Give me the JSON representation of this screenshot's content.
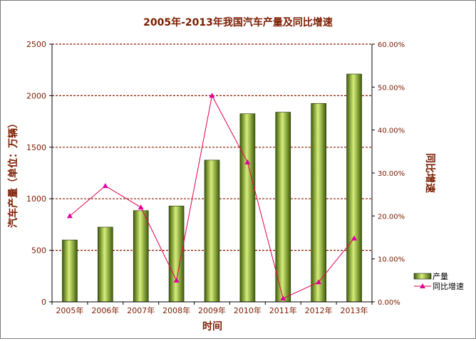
{
  "chart_data": {
    "type": "bar",
    "title": "2005年-2013年我国汽车产量及同比增速",
    "xlabel": "时间",
    "ylabel": "汽车产量（单位：万辆）",
    "y2label": "同比增速",
    "categories": [
      "2005年",
      "2006年",
      "2007年",
      "2008年",
      "2009年",
      "2010年",
      "2011年",
      "2012年",
      "2013年"
    ],
    "ylim": [
      0,
      2500
    ],
    "y2lim": [
      0,
      0.6
    ],
    "yticks": [
      "0",
      "500",
      "1000",
      "1500",
      "2000",
      "2500"
    ],
    "y2ticks": [
      "0.00%",
      "10.00%",
      "20.00%",
      "30.00%",
      "40.00%",
      "50.00%",
      "60.00%"
    ],
    "series": [
      {
        "name": "产量",
        "kind": "bar",
        "axis": "left",
        "values": [
          600,
          725,
          885,
          930,
          1375,
          1825,
          1840,
          1925,
          2210
        ]
      },
      {
        "name": "同比增速",
        "kind": "line",
        "axis": "right",
        "values": [
          0.2,
          0.27,
          0.22,
          0.05,
          0.48,
          0.325,
          0.008,
          0.046,
          0.148
        ]
      }
    ],
    "grid": true,
    "legend": "bottom-right",
    "colors": {
      "bar_light": "#d6ee7a",
      "bar_mid": "#8fb127",
      "bar_dark": "#3f5c08",
      "line": "#e0004d",
      "marker": "#e000a0",
      "grid": "#8b1a00",
      "title": "#7b1c00",
      "axis_text": "#7b1c00"
    }
  }
}
